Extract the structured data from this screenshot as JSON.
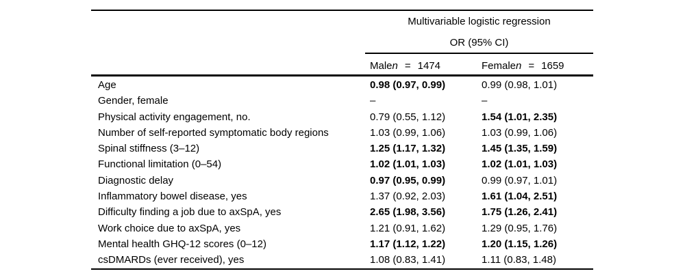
{
  "table": {
    "title_line1": "Multivariable logistic regression",
    "title_line2": "OR (95% CI)",
    "columns": [
      {
        "group": "Male",
        "n_symbol": "n",
        "equals": "=",
        "count": "1474"
      },
      {
        "group": "Female",
        "n_symbol": "n",
        "equals": "=",
        "count": "1659"
      }
    ],
    "rows": [
      {
        "label": "Age",
        "male": {
          "text": "0.98 (0.97, 0.99)",
          "bold": true
        },
        "female": {
          "text": "0.99 (0.98, 1.01)",
          "bold": false
        }
      },
      {
        "label": "Gender, female",
        "male": {
          "text": "–",
          "bold": false
        },
        "female": {
          "text": "–",
          "bold": false
        }
      },
      {
        "label": "Physical activity engagement, no.",
        "male": {
          "text": "0.79 (0.55, 1.12)",
          "bold": false
        },
        "female": {
          "text": "1.54 (1.01, 2.35)",
          "bold": true
        }
      },
      {
        "label": "Number of self-reported symptomatic body regions",
        "male": {
          "text": "1.03 (0.99, 1.06)",
          "bold": false
        },
        "female": {
          "text": "1.03 (0.99, 1.06)",
          "bold": false
        }
      },
      {
        "label": "Spinal stiffness (3–12)",
        "male": {
          "text": "1.25 (1.17, 1.32)",
          "bold": true
        },
        "female": {
          "text": "1.45 (1.35, 1.59)",
          "bold": true
        }
      },
      {
        "label": "Functional limitation (0–54)",
        "male": {
          "text": "1.02 (1.01, 1.03)",
          "bold": true
        },
        "female": {
          "text": "1.02 (1.01, 1.03)",
          "bold": true
        }
      },
      {
        "label": "Diagnostic delay",
        "male": {
          "text": "0.97 (0.95, 0.99)",
          "bold": true
        },
        "female": {
          "text": "0.99 (0.97, 1.01)",
          "bold": false
        }
      },
      {
        "label": "Inflammatory bowel disease, yes",
        "male": {
          "text": "1.37 (0.92, 2.03)",
          "bold": false
        },
        "female": {
          "text": "1.61 (1.04, 2.51)",
          "bold": true
        }
      },
      {
        "label": "Difficulty finding a job due to axSpA, yes",
        "male": {
          "text": "2.65 (1.98, 3.56)",
          "bold": true
        },
        "female": {
          "text": "1.75 (1.26, 2.41)",
          "bold": true
        }
      },
      {
        "label": "Work choice due to axSpA, yes",
        "male": {
          "text": "1.21 (0.91, 1.62)",
          "bold": false
        },
        "female": {
          "text": "1.29 (0.95, 1.76)",
          "bold": false
        }
      },
      {
        "label": "Mental health GHQ-12 scores (0–12)",
        "male": {
          "text": "1.17 (1.12, 1.22)",
          "bold": true
        },
        "female": {
          "text": "1.20 (1.15, 1.26)",
          "bold": true
        }
      },
      {
        "label": "csDMARDs (ever received), yes",
        "male": {
          "text": "1.08 (0.83, 1.41)",
          "bold": false
        },
        "female": {
          "text": "1.11 (0.83, 1.48)",
          "bold": false
        }
      }
    ]
  },
  "colors": {
    "text": "#000000",
    "background": "#ffffff",
    "rule": "#000000"
  }
}
